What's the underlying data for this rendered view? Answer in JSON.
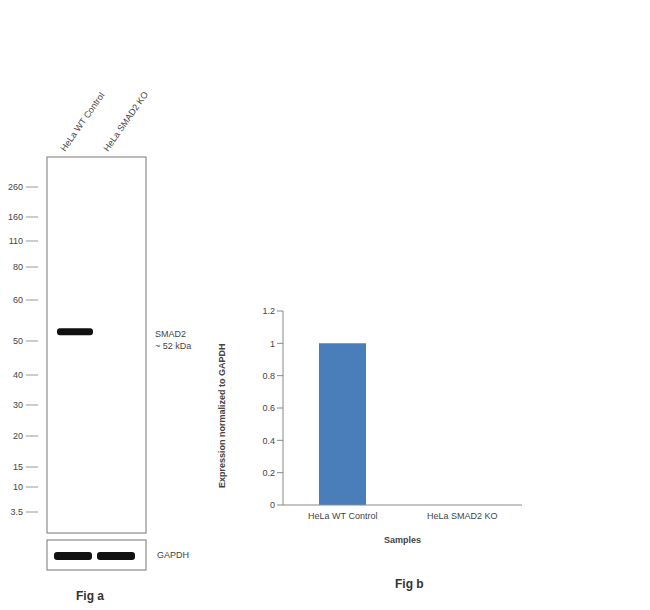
{
  "blot": {
    "caption": "Fig a",
    "lanes": [
      "HeLa WT Control",
      "HeLa SMAD2 KO"
    ],
    "markers": [
      260,
      160,
      110,
      80,
      60,
      50,
      40,
      30,
      20,
      15,
      10,
      3.5
    ],
    "targets": [
      {
        "label": "SMAD2",
        "note": "~ 52 kDa",
        "kda": 52,
        "present": [
          true,
          false
        ]
      }
    ],
    "loading_control": {
      "label": "GAPDH",
      "present": [
        true,
        true
      ]
    }
  },
  "chart_data": {
    "type": "bar",
    "caption": "Fig b",
    "categories": [
      "HeLa WT Control",
      "HeLa SMAD2 KO"
    ],
    "values": [
      1,
      0
    ],
    "color": "#4a7ebb",
    "ylim": [
      0,
      1.2
    ],
    "yticks": [
      0,
      0.2,
      0.4,
      0.6,
      0.8,
      1,
      1.2
    ],
    "y_label": "Expression  normalized to GAPDH",
    "x_label": "Samples",
    "grid": false
  }
}
